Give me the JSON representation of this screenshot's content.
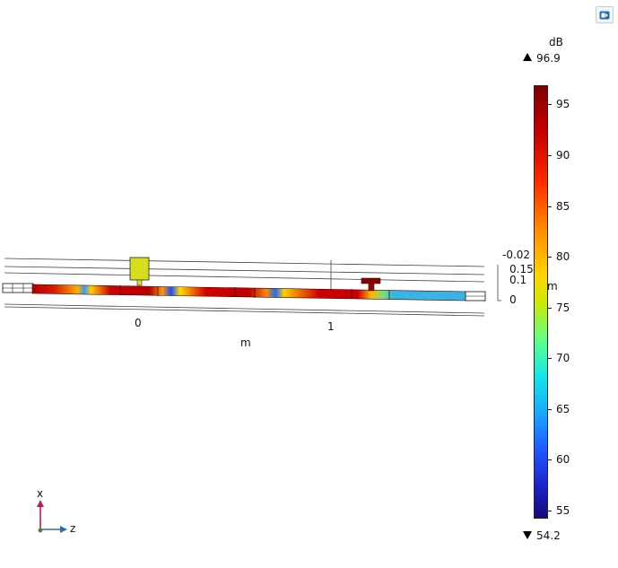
{
  "colorbar": {
    "unit": "dB",
    "max_label": "96.9",
    "min_label": "54.2",
    "max": 96.9,
    "min": 54.2,
    "ticks": [
      {
        "value": 95,
        "label": "95"
      },
      {
        "value": 90,
        "label": "90"
      },
      {
        "value": 85,
        "label": "85"
      },
      {
        "value": 80,
        "label": "80"
      },
      {
        "value": 75,
        "label": "75"
      },
      {
        "value": 70,
        "label": "70"
      },
      {
        "value": 65,
        "label": "65"
      },
      {
        "value": 60,
        "label": "60"
      },
      {
        "value": 55,
        "label": "55"
      }
    ]
  },
  "axes": {
    "z_ticks": [
      "0",
      "1"
    ],
    "z_unit": "m",
    "y_ticks": [
      "-0.02",
      "0.15",
      "0.1",
      "0"
    ],
    "y_unit": "m"
  },
  "triad": {
    "x_label": "x",
    "z_label": "z",
    "x_color": "#c2185b",
    "z_color": "#2f6db0",
    "y_color": "#3a8a3a"
  },
  "toolbar": {
    "icon": "camera-view-icon"
  }
}
